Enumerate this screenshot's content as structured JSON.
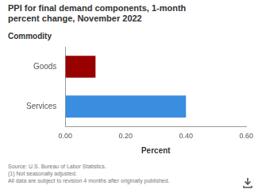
{
  "chart_data": {
    "type": "bar",
    "title": "PPI for final demand components, 1-month percent change, November 2022",
    "y_label": "Commodity",
    "x_label": "Percent",
    "categories": [
      "Goods",
      "Services"
    ],
    "values": [
      0.1,
      0.4
    ],
    "colors": [
      "#990000",
      "#3b8de0"
    ],
    "orientation": "horizontal",
    "xlim": [
      0,
      0.6
    ],
    "xticks": [
      {
        "value": 0,
        "label": "0.00"
      },
      {
        "value": 0.2,
        "label": "0.20"
      },
      {
        "value": 0.4,
        "label": "0.40"
      },
      {
        "value": 0.6,
        "label": "0.60"
      }
    ],
    "grid": false,
    "annotations": [
      "Source: U.S. Bureau of Labor Statistics.",
      "(1) Not seasonally adjusted.",
      "All data are subject to revision 4 months after originally published."
    ]
  }
}
